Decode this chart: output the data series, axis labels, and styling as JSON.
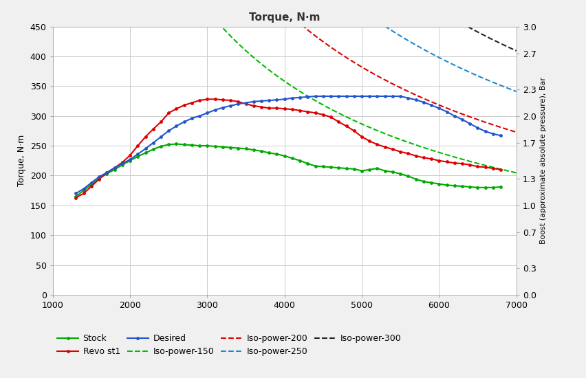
{
  "title": "Torque, N·m",
  "xlabel": "",
  "ylabel_left": "Torque, N·m",
  "ylabel_right": "Boost (approximate absolute pressure), Bar",
  "xlim": [
    1000,
    7000
  ],
  "ylim_left": [
    0,
    450
  ],
  "ylim_right": [
    0.0,
    3.0
  ],
  "yticks_left": [
    0,
    50,
    100,
    150,
    200,
    250,
    300,
    350,
    400,
    450
  ],
  "yticks_right": [
    0.0,
    0.3,
    0.7,
    1.0,
    1.3,
    1.7,
    2.0,
    2.3,
    2.7,
    3.0
  ],
  "xticks": [
    1000,
    2000,
    3000,
    4000,
    5000,
    6000,
    7000
  ],
  "stock_rpm": [
    1300,
    1400,
    1500,
    1600,
    1700,
    1800,
    1900,
    2000,
    2100,
    2200,
    2300,
    2400,
    2500,
    2600,
    2700,
    2800,
    2900,
    3000,
    3100,
    3200,
    3300,
    3400,
    3500,
    3600,
    3700,
    3800,
    3900,
    4000,
    4100,
    4200,
    4300,
    4400,
    4500,
    4600,
    4700,
    4800,
    4900,
    5000,
    5100,
    5200,
    5300,
    5400,
    5500,
    5600,
    5700,
    5800,
    5900,
    6000,
    6100,
    6200,
    6300,
    6400,
    6500,
    6600,
    6700,
    6800
  ],
  "stock_torque": [
    165,
    175,
    185,
    195,
    203,
    210,
    218,
    225,
    232,
    238,
    244,
    249,
    252,
    253,
    252,
    251,
    250,
    250,
    249,
    248,
    247,
    246,
    245,
    243,
    241,
    238,
    236,
    233,
    229,
    225,
    220,
    216,
    215,
    214,
    213,
    212,
    211,
    208,
    210,
    212,
    208,
    206,
    203,
    199,
    194,
    190,
    188,
    186,
    184,
    183,
    182,
    181,
    180,
    180,
    180,
    181
  ],
  "revo_rpm": [
    1300,
    1400,
    1500,
    1600,
    1700,
    1800,
    1900,
    2000,
    2100,
    2200,
    2300,
    2400,
    2500,
    2600,
    2700,
    2800,
    2900,
    3000,
    3100,
    3200,
    3300,
    3400,
    3500,
    3600,
    3700,
    3800,
    3900,
    4000,
    4100,
    4200,
    4300,
    4400,
    4500,
    4600,
    4700,
    4800,
    4900,
    5000,
    5100,
    5200,
    5300,
    5400,
    5500,
    5600,
    5700,
    5800,
    5900,
    6000,
    6100,
    6200,
    6300,
    6400,
    6500,
    6600,
    6700,
    6800
  ],
  "revo_torque": [
    163,
    170,
    182,
    194,
    205,
    213,
    222,
    234,
    250,
    265,
    278,
    290,
    305,
    312,
    318,
    322,
    326,
    328,
    328,
    327,
    326,
    324,
    320,
    317,
    315,
    313,
    313,
    312,
    311,
    309,
    307,
    305,
    302,
    298,
    290,
    283,
    275,
    265,
    258,
    252,
    248,
    244,
    240,
    237,
    233,
    230,
    228,
    225,
    223,
    221,
    220,
    218,
    215,
    214,
    212,
    210
  ],
  "desired_rpm": [
    1300,
    1400,
    1500,
    1600,
    1700,
    1800,
    1900,
    2000,
    2100,
    2200,
    2300,
    2400,
    2500,
    2600,
    2700,
    2800,
    2900,
    3000,
    3100,
    3200,
    3300,
    3400,
    3500,
    3600,
    3700,
    3800,
    3900,
    4000,
    4100,
    4200,
    4300,
    4400,
    4500,
    4600,
    4700,
    4800,
    4900,
    5000,
    5100,
    5200,
    5300,
    5400,
    5500,
    5600,
    5700,
    5800,
    5900,
    6000,
    6100,
    6200,
    6300,
    6400,
    6500,
    6600,
    6700,
    6800
  ],
  "desired_torque": [
    170,
    178,
    188,
    198,
    205,
    213,
    220,
    227,
    236,
    245,
    255,
    265,
    275,
    283,
    290,
    296,
    300,
    305,
    310,
    314,
    317,
    320,
    322,
    324,
    325,
    326,
    327,
    328,
    330,
    331,
    332,
    333,
    333,
    333,
    333,
    333,
    333,
    333,
    333,
    333,
    333,
    333,
    333,
    330,
    327,
    323,
    318,
    313,
    307,
    300,
    294,
    287,
    280,
    274,
    270,
    267
  ],
  "stock_color": "#00aa00",
  "revo_color": "#dd0000",
  "desired_color": "#2255cc",
  "iso150_color": "#00bb00",
  "iso200_color": "#dd0000",
  "iso250_color": "#2288cc",
  "iso300_color": "#222222",
  "plot_bg": "#ffffff",
  "fig_bg": "#f0f0f0",
  "grid_color": "#cccccc"
}
